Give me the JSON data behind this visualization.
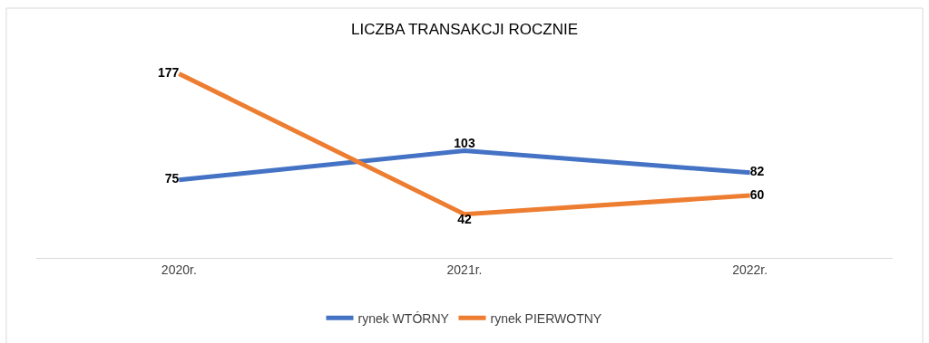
{
  "chart_data": {
    "type": "line",
    "title": "LICZBA TRANSAKCJI ROCZNIE",
    "categories": [
      "2020r.",
      "2021r.",
      "2022r."
    ],
    "series": [
      {
        "name": "rynek WTÓRNY",
        "color": "#4472c4",
        "values": [
          75,
          103,
          82
        ]
      },
      {
        "name": "rynek PIERWOTNY",
        "color": "#ed7d31",
        "values": [
          177,
          42,
          60
        ]
      }
    ],
    "data_labels": true,
    "legend": "bottom",
    "marker": "none",
    "line_style": "solid"
  }
}
